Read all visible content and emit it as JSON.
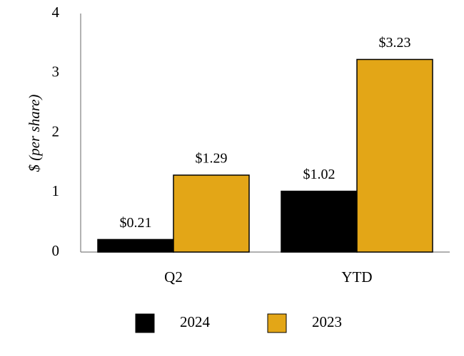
{
  "chart_data": {
    "type": "bar",
    "title": "",
    "xlabel": "",
    "ylabel": "$ (per share)",
    "ylim": [
      0,
      4
    ],
    "yticks": [
      "0",
      "1",
      "2",
      "3",
      "4"
    ],
    "categories": [
      "Q2",
      "YTD"
    ],
    "series": [
      {
        "name": "2024",
        "color": "#000000",
        "values": [
          0.21,
          1.02
        ],
        "labels": [
          "$0.21",
          "$1.02"
        ]
      },
      {
        "name": "2023",
        "color": "#E3A617",
        "values": [
          1.29,
          3.23
        ],
        "labels": [
          "$1.29",
          "$3.23"
        ]
      }
    ],
    "legend_position": "bottom",
    "grid": false
  }
}
